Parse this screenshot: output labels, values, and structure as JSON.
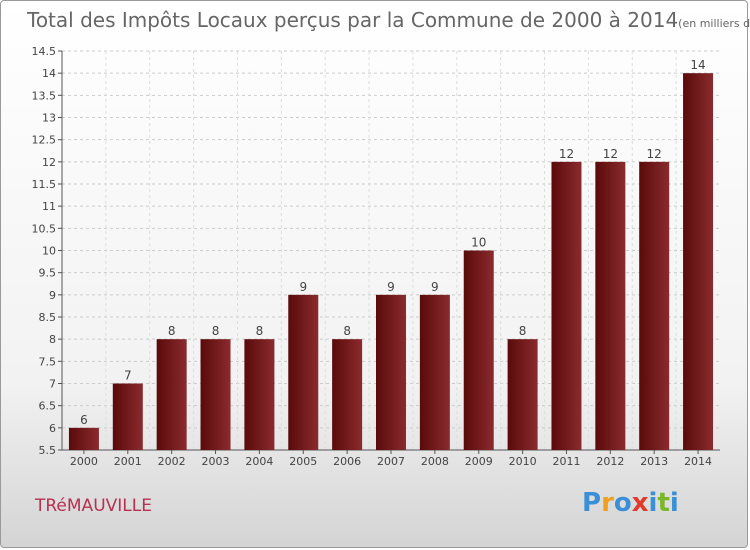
{
  "chart_data": {
    "type": "bar",
    "title": "Total des Impôts Locaux perçus par la Commune de 2000 à 2014",
    "title_unit": "(en milliers d'€)",
    "xlabel": "",
    "ylabel": "",
    "categories": [
      "2000",
      "2001",
      "2002",
      "2003",
      "2004",
      "2005",
      "2006",
      "2007",
      "2008",
      "2009",
      "2010",
      "2011",
      "2012",
      "2013",
      "2014"
    ],
    "values": [
      6,
      7,
      8,
      8,
      8,
      9,
      8,
      9,
      9,
      10,
      8,
      12,
      12,
      12,
      14
    ],
    "data_labels": [
      "6",
      "7",
      "8",
      "8",
      "8",
      "9",
      "8",
      "9",
      "9",
      "10",
      "8",
      "12",
      "12",
      "12",
      "14"
    ],
    "ylim": [
      5.5,
      14.5
    ],
    "yticks": [
      "5.5",
      "6",
      "6.5",
      "7",
      "7.5",
      "8",
      "8.5",
      "9",
      "9.5",
      "10",
      "10.5",
      "11",
      "11.5",
      "12",
      "12.5",
      "13",
      "13.5",
      "14",
      "14.5"
    ],
    "grid": true,
    "legend": "none"
  },
  "commune": "TRéMAUVILLE",
  "logo": {
    "text": "Proxiti",
    "letters": [
      "P",
      "r",
      "o",
      "x",
      "i",
      "t",
      "i"
    ],
    "colors": [
      "#3a8fd6",
      "#f0a020",
      "#3a8fd6",
      "#e03a2a",
      "#3a8fd6",
      "#7ab82a",
      "#3a8fd6"
    ]
  },
  "colors": {
    "bar_light": "#8a2b2e",
    "bar_dark": "#5a0a0a",
    "title": "#666666",
    "commune": "#b83050"
  }
}
